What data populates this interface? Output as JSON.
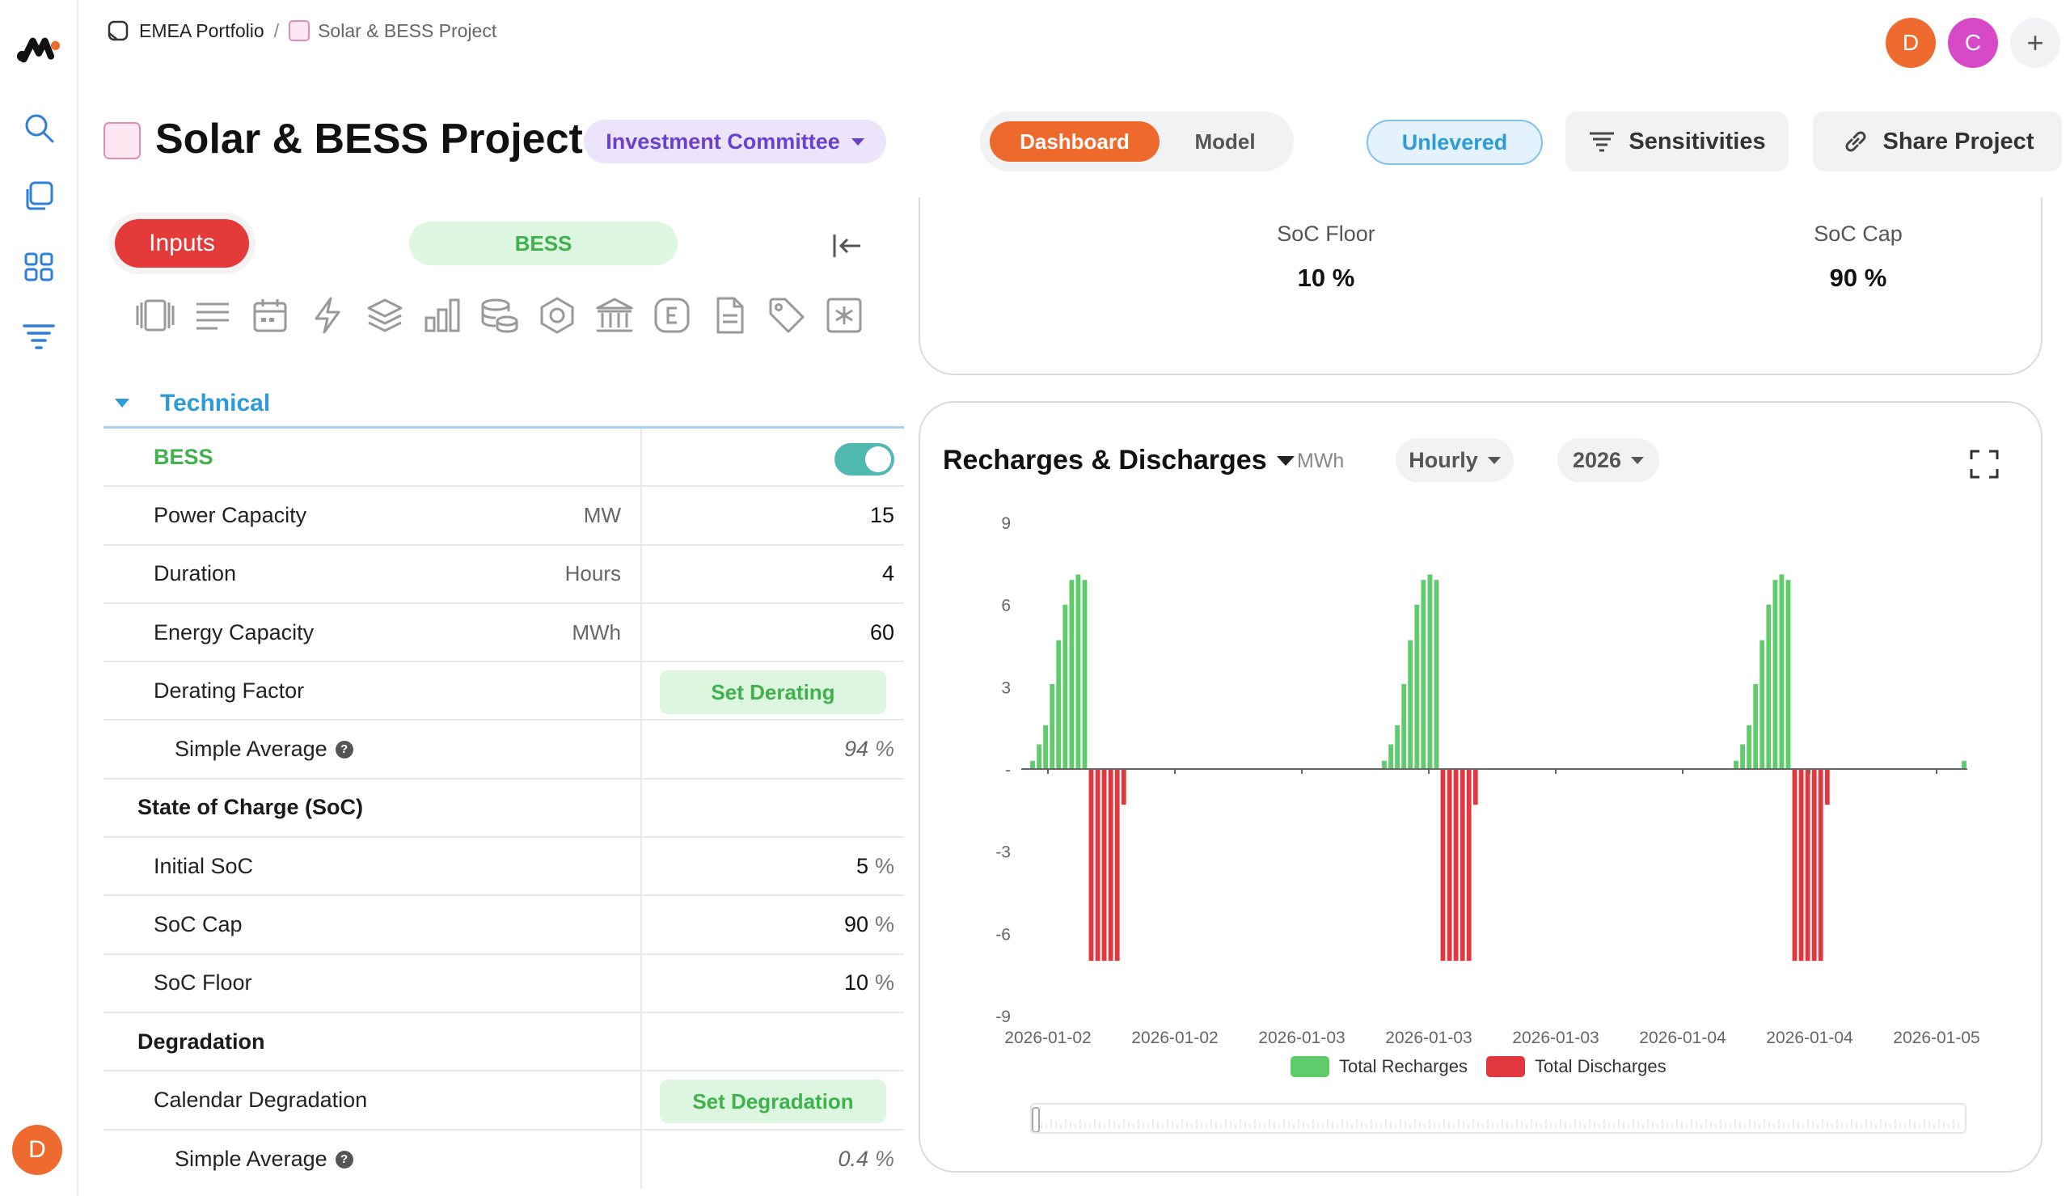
{
  "breadcrumb": {
    "portfolio": "EMEA Portfolio",
    "separator": "/",
    "project": "Solar & BESS Project"
  },
  "header": {
    "title": "Solar & BESS Project",
    "status": "Investment Committee",
    "view_tabs": {
      "dashboard": "Dashboard",
      "model": "Model"
    },
    "unlevered": "Unlevered",
    "sensitivities": "Sensitivities",
    "share": "Share Project"
  },
  "users": [
    {
      "initial": "D",
      "color": "#ef6a2e"
    },
    {
      "initial": "C",
      "color": "#d749c6"
    }
  ],
  "plus": "+",
  "rail_avatar": "D",
  "panel": {
    "inputs_label": "Inputs",
    "context_pill": "BESS",
    "section": "Technical",
    "rows": [
      {
        "label": "BESS",
        "kind": "toggle",
        "on": true
      },
      {
        "label": "Power Capacity",
        "unit": "MW",
        "value": "15"
      },
      {
        "label": "Duration",
        "unit": "Hours",
        "value": "4"
      },
      {
        "label": "Energy Capacity",
        "unit": "MWh",
        "value": "60"
      },
      {
        "label": "Derating Factor",
        "kind": "button",
        "button": "Set Derating"
      },
      {
        "label": "Simple Average",
        "kind": "sub",
        "value": "94",
        "pct": "%"
      },
      {
        "label": "State of Charge (SoC)",
        "kind": "head"
      },
      {
        "label": "Initial SoC",
        "value": "5",
        "pct": "%"
      },
      {
        "label": "SoC Cap",
        "value": "90",
        "pct": "%"
      },
      {
        "label": "SoC Floor",
        "value": "10",
        "pct": "%"
      },
      {
        "label": "Degradation",
        "kind": "head"
      },
      {
        "label": "Calendar Degradation",
        "kind": "button",
        "button": "Set Degradation"
      },
      {
        "label": "Simple Average",
        "kind": "sub",
        "value": "0.4",
        "pct": "%"
      }
    ]
  },
  "soc_card": {
    "floor_label": "SoC Floor",
    "floor_value": "10 %",
    "cap_label": "SoC Cap",
    "cap_value": "90 %"
  },
  "chart": {
    "title": "Recharges & Discharges",
    "unit": "MWh",
    "granularity": "Hourly",
    "year": "2026"
  },
  "colors": {
    "recharge": "#5fcb6b",
    "discharge": "#e0383e",
    "accent": "#ee6a2c"
  },
  "chart_data": {
    "type": "bar",
    "ylim": [
      -9,
      9
    ],
    "y_ticks": [
      "9",
      "6",
      "3",
      "-",
      "-3",
      "-6",
      "-9"
    ],
    "x_tick_labels": [
      "2026-01-02",
      "2026-01-02",
      "2026-01-03",
      "2026-01-03",
      "2026-01-03",
      "2026-01-04",
      "2026-01-04",
      "2026-01-05"
    ],
    "grid": false,
    "legend_position": "bottom",
    "series": [
      {
        "name": "Total Recharges",
        "values": [
          0.3,
          0.9,
          1.6,
          3.1,
          4.7,
          6.0,
          6.9,
          7.1,
          6.9,
          0,
          0,
          0,
          0,
          0,
          0,
          0,
          0,
          0,
          0,
          0,
          0,
          0,
          0,
          0,
          0,
          0,
          0,
          0,
          0,
          0,
          0,
          0,
          0,
          0,
          0,
          0,
          0,
          0,
          0,
          0,
          0,
          0,
          0,
          0,
          0,
          0,
          0,
          0,
          0,
          0,
          0,
          0,
          0,
          0,
          0.3,
          0.9,
          1.6,
          3.1,
          4.7,
          6.0,
          6.9,
          7.1,
          6.9,
          0,
          0,
          0,
          0,
          0,
          0,
          0,
          0,
          0,
          0,
          0,
          0,
          0,
          0,
          0,
          0,
          0,
          0,
          0,
          0,
          0,
          0,
          0,
          0,
          0,
          0,
          0,
          0,
          0,
          0,
          0,
          0,
          0,
          0,
          0,
          0,
          0,
          0,
          0,
          0,
          0,
          0,
          0,
          0,
          0,
          0.3,
          0.9,
          1.6,
          3.1,
          4.7,
          6.0,
          6.9,
          7.1,
          6.9,
          0,
          0,
          0,
          0,
          0,
          0,
          0,
          0,
          0,
          0,
          0,
          0,
          0,
          0,
          0,
          0,
          0,
          0,
          0,
          0,
          0,
          0,
          0,
          0,
          0,
          0,
          0.3
        ]
      },
      {
        "name": "Total Discharges",
        "values": [
          0,
          0,
          0,
          0,
          0,
          0,
          0,
          0,
          0,
          -7.0,
          -7.0,
          -7.0,
          -7.0,
          -7.0,
          -1.3,
          0,
          0,
          0,
          0,
          0,
          0,
          0,
          0,
          0,
          0,
          0,
          0,
          0,
          0,
          0,
          0,
          0,
          0,
          0,
          0,
          0,
          0,
          0,
          0,
          0,
          0,
          0,
          0,
          0,
          0,
          0,
          0,
          0,
          0,
          0,
          0,
          0,
          0,
          0,
          0,
          0,
          0,
          0,
          0,
          0,
          0,
          0,
          0,
          -7.0,
          -7.0,
          -7.0,
          -7.0,
          -7.0,
          -1.3,
          0,
          0,
          0,
          0,
          0,
          0,
          0,
          0,
          0,
          0,
          0,
          0,
          0,
          0,
          0,
          0,
          0,
          0,
          0,
          0,
          0,
          0,
          0,
          0,
          0,
          0,
          0,
          0,
          0,
          0,
          0,
          0,
          0,
          0,
          0,
          0,
          0,
          0,
          0,
          0,
          0,
          0,
          0,
          0,
          0,
          0,
          0,
          0,
          -7.0,
          -7.0,
          -7.0,
          -7.0,
          -7.0,
          -1.3,
          0,
          0,
          0,
          0,
          0,
          0,
          0,
          0,
          0,
          0,
          0,
          0,
          0,
          0,
          0,
          0,
          0,
          0,
          0,
          0,
          0
        ]
      }
    ]
  }
}
